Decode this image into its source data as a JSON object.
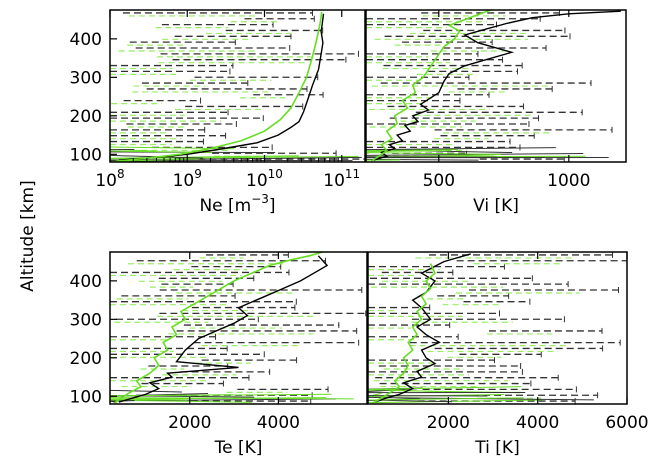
{
  "figure": {
    "shared_ylabel": "Altitude [km]",
    "colors": {
      "median": "#000000",
      "data_errorbars": "#333333",
      "model": "#66dd22",
      "model_errorbars": "#99ee66"
    }
  },
  "chart_data": [
    {
      "id": "ne",
      "type": "line",
      "xlabel": "Ne [m-3]",
      "xlabel_main": "Ne [m",
      "xlabel_sup": "−3",
      "xlabel_end": "]",
      "xscale": "log",
      "xlim": [
        100000000.0,
        200000000000.0
      ],
      "ylim": [
        80,
        475
      ],
      "xticks": [
        {
          "v": 100000000.0,
          "base": "10",
          "exp": "8"
        },
        {
          "v": 1000000000.0,
          "base": "10",
          "exp": "9"
        },
        {
          "v": 10000000000.0,
          "base": "10",
          "exp": "10"
        },
        {
          "v": 100000000000.0,
          "base": "10",
          "exp": "11"
        }
      ],
      "yticks": [
        {
          "v": 100,
          "label": "100"
        },
        {
          "v": 200,
          "label": "200"
        },
        {
          "v": 300,
          "label": "300"
        },
        {
          "v": 400,
          "label": "400"
        }
      ],
      "series": [
        {
          "role": "median",
          "x": [
            130000000.0,
            400000000.0,
            1000000000.0,
            3000000000.0,
            8000000000.0,
            15000000000.0,
            22000000000.0,
            28000000000.0,
            32000000000.0,
            36000000000.0,
            42000000000.0,
            50000000000.0,
            54000000000.0,
            57000000000.0,
            54000000000.0,
            56000000000.0,
            58000000000.0
          ],
          "y": [
            85,
            92,
            100,
            115,
            130,
            150,
            170,
            185,
            210,
            240,
            280,
            320,
            360,
            390,
            420,
            440,
            465
          ]
        },
        {
          "role": "model",
          "x": [
            120000000.0,
            300000000.0,
            800000000.0,
            2000000000.0,
            5000000000.0,
            10000000000.0,
            16000000000.0,
            22000000000.0,
            28000000000.0,
            35000000000.0,
            40000000000.0,
            45000000000.0,
            50000000000.0,
            53000000000.0,
            55000000000.0
          ],
          "y": [
            82,
            90,
            100,
            115,
            135,
            160,
            190,
            220,
            260,
            300,
            340,
            380,
            420,
            445,
            470
          ]
        }
      ]
    },
    {
      "id": "vi",
      "type": "line",
      "xlabel": "Vi [K]",
      "xscale": "linear",
      "xlim": [
        220,
        1220
      ],
      "ylim": [
        80,
        475
      ],
      "xticks": [
        {
          "v": 500,
          "label": "500"
        },
        {
          "v": 1000,
          "label": "1000"
        }
      ],
      "yticks": [],
      "series": [
        {
          "role": "median",
          "x": [
            250,
            300,
            280,
            330,
            310,
            360,
            340,
            390,
            370,
            420,
            400,
            460,
            430,
            500,
            520,
            540,
            600,
            780,
            650,
            600,
            680,
            760,
            860,
            1000,
            1200
          ],
          "y": [
            85,
            95,
            105,
            115,
            125,
            135,
            150,
            160,
            175,
            185,
            200,
            215,
            230,
            260,
            290,
            310,
            330,
            365,
            390,
            410,
            425,
            440,
            455,
            465,
            472
          ]
        },
        {
          "role": "model",
          "x": [
            240,
            270,
            300,
            280,
            320,
            300,
            340,
            330,
            380,
            360,
            410,
            400,
            440,
            470,
            500,
            520,
            560,
            580,
            540,
            600,
            660,
            700
          ],
          "y": [
            82,
            95,
            110,
            125,
            140,
            160,
            180,
            200,
            220,
            240,
            260,
            280,
            300,
            330,
            360,
            380,
            400,
            420,
            435,
            450,
            465,
            475
          ]
        }
      ]
    },
    {
      "id": "te",
      "type": "line",
      "xlabel": "Te [K]",
      "xscale": "linear",
      "xlim": [
        200,
        6000
      ],
      "ylim": [
        80,
        475
      ],
      "xticks": [
        {
          "v": 2000,
          "label": "2000"
        },
        {
          "v": 4000,
          "label": "4000"
        }
      ],
      "yticks": [
        {
          "v": 100,
          "label": "100"
        },
        {
          "v": 200,
          "label": "200"
        },
        {
          "v": 300,
          "label": "300"
        },
        {
          "v": 400,
          "label": "400"
        }
      ],
      "series": [
        {
          "role": "median",
          "x": [
            400,
            700,
            1000,
            1300,
            1100,
            1600,
            1500,
            3100,
            1700,
            1900,
            2200,
            2600,
            3000,
            3300,
            3100,
            3400,
            3700,
            4100,
            4500,
            4800,
            5100,
            4900
          ],
          "y": [
            85,
            95,
            105,
            120,
            135,
            150,
            160,
            175,
            190,
            220,
            250,
            270,
            290,
            310,
            330,
            345,
            360,
            380,
            400,
            420,
            440,
            465
          ]
        },
        {
          "role": "model",
          "x": [
            300,
            450,
            650,
            900,
            800,
            1100,
            1300,
            1200,
            1500,
            1400,
            1700,
            1600,
            1900,
            1800,
            2100,
            2400,
            2700,
            3000,
            3400,
            3800,
            4300,
            4700,
            5000
          ],
          "y": [
            82,
            95,
            110,
            125,
            140,
            160,
            180,
            200,
            220,
            240,
            260,
            280,
            300,
            320,
            340,
            360,
            380,
            400,
            420,
            440,
            455,
            465,
            475
          ]
        }
      ]
    },
    {
      "id": "ti",
      "type": "line",
      "xlabel": "Ti [K]",
      "xscale": "linear",
      "xlim": [
        200,
        6000
      ],
      "ylim": [
        80,
        475
      ],
      "xticks": [
        {
          "v": 2000,
          "label": "2000"
        },
        {
          "v": 4000,
          "label": "4000"
        },
        {
          "v": 6000,
          "label": "6000"
        }
      ],
      "yticks": [],
      "series": [
        {
          "role": "median",
          "x": [
            350,
            600,
            900,
            1200,
            1000,
            1400,
            1300,
            1700,
            1500,
            1400,
            1800,
            1500,
            1300,
            1600,
            1400,
            1200,
            1500,
            1700,
            1400,
            1900,
            2500
          ],
          "y": [
            85,
            95,
            105,
            120,
            135,
            150,
            165,
            185,
            200,
            220,
            240,
            260,
            280,
            300,
            330,
            350,
            370,
            400,
            420,
            450,
            470
          ]
        },
        {
          "role": "model",
          "x": [
            300,
            500,
            700,
            900,
            800,
            1000,
            1100,
            1000,
            1200,
            1100,
            1300,
            1200,
            1400,
            1300,
            1500,
            1400,
            1600,
            1500,
            1700,
            1600
          ],
          "y": [
            82,
            95,
            110,
            125,
            140,
            160,
            180,
            200,
            220,
            240,
            260,
            280,
            300,
            320,
            340,
            360,
            380,
            400,
            420,
            445
          ]
        }
      ]
    }
  ]
}
